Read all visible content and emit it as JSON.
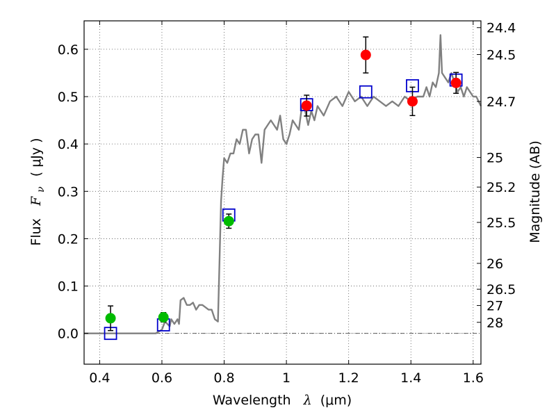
{
  "chart_data": {
    "type": "scatter",
    "title": "",
    "xlabel": "Wavelength",
    "xlabel_math": "λ",
    "xlabel_unit": "(μm)",
    "ylabel": "Flux",
    "ylabel_math": "F",
    "ylabel_math_sub": "ν",
    "ylabel_unit": "( μJy )",
    "y2label": "Magnitude (AB)",
    "xlim": [
      0.35,
      1.625
    ],
    "ylim": [
      -0.065,
      0.66
    ],
    "grid": true,
    "x_ticks": [
      0.4,
      0.6,
      0.8,
      1.0,
      1.2,
      1.4,
      1.6
    ],
    "x_tick_labels": [
      "0.4",
      "0.6",
      "0.8",
      "1",
      "1.2",
      "1.4",
      "1.6"
    ],
    "y_ticks": [
      0.0,
      0.1,
      0.2,
      0.3,
      0.4,
      0.5,
      0.6
    ],
    "y_tick_labels": [
      "0.0",
      "0.1",
      "0.2",
      "0.3",
      "0.4",
      "0.5",
      "0.6"
    ],
    "y2_ticks": [
      {
        "label": "24.4",
        "flux": 0.6457
      },
      {
        "label": "24.5",
        "flux": 0.5888
      },
      {
        "label": "24.7",
        "flux": 0.4898
      },
      {
        "label": "25",
        "flux": 0.3715
      },
      {
        "label": "25.2",
        "flux": 0.309
      },
      {
        "label": "25.5",
        "flux": 0.2344
      },
      {
        "label": "26",
        "flux": 0.1479
      },
      {
        "label": "26.5",
        "flux": 0.0933
      },
      {
        "label": "27",
        "flux": 0.0589
      },
      {
        "label": "28",
        "flux": 0.0234
      }
    ],
    "series": [
      {
        "kind": "line",
        "color": "#808080",
        "x": [
          0.35,
          0.4,
          0.45,
          0.5,
          0.55,
          0.58,
          0.6,
          0.61,
          0.625,
          0.63,
          0.64,
          0.65,
          0.655,
          0.66,
          0.67,
          0.68,
          0.69,
          0.7,
          0.71,
          0.72,
          0.73,
          0.74,
          0.75,
          0.76,
          0.77,
          0.78,
          0.785,
          0.79,
          0.795,
          0.8,
          0.81,
          0.82,
          0.83,
          0.84,
          0.85,
          0.86,
          0.87,
          0.88,
          0.89,
          0.9,
          0.91,
          0.92,
          0.93,
          0.94,
          0.95,
          0.96,
          0.97,
          0.98,
          0.99,
          1.0,
          1.01,
          1.02,
          1.03,
          1.04,
          1.05,
          1.06,
          1.07,
          1.08,
          1.09,
          1.1,
          1.12,
          1.14,
          1.16,
          1.18,
          1.2,
          1.22,
          1.24,
          1.26,
          1.28,
          1.3,
          1.32,
          1.34,
          1.36,
          1.38,
          1.4,
          1.42,
          1.44,
          1.45,
          1.46,
          1.47,
          1.48,
          1.49,
          1.495,
          1.5,
          1.51,
          1.52,
          1.53,
          1.54,
          1.55,
          1.56,
          1.57,
          1.58,
          1.59,
          1.6,
          1.61,
          1.625
        ],
        "y": [
          0.0,
          0.0,
          0.0,
          0.0,
          0.0,
          0.0,
          0.008,
          0.025,
          0.015,
          0.03,
          0.02,
          0.03,
          0.02,
          0.07,
          0.075,
          0.06,
          0.06,
          0.065,
          0.05,
          0.06,
          0.06,
          0.055,
          0.05,
          0.05,
          0.03,
          0.025,
          0.15,
          0.28,
          0.33,
          0.37,
          0.36,
          0.38,
          0.38,
          0.41,
          0.4,
          0.43,
          0.43,
          0.38,
          0.41,
          0.42,
          0.42,
          0.36,
          0.43,
          0.44,
          0.45,
          0.44,
          0.43,
          0.46,
          0.41,
          0.4,
          0.42,
          0.45,
          0.44,
          0.43,
          0.48,
          0.47,
          0.44,
          0.47,
          0.45,
          0.48,
          0.46,
          0.49,
          0.5,
          0.48,
          0.51,
          0.49,
          0.5,
          0.48,
          0.5,
          0.49,
          0.48,
          0.49,
          0.48,
          0.5,
          0.49,
          0.5,
          0.5,
          0.52,
          0.5,
          0.53,
          0.52,
          0.55,
          0.63,
          0.55,
          0.54,
          0.53,
          0.55,
          0.53,
          0.51,
          0.52,
          0.5,
          0.52,
          0.51,
          0.5,
          0.5,
          0.48
        ]
      },
      {
        "kind": "open-square",
        "color": "#0000cc",
        "x": [
          0.435,
          0.605,
          0.815,
          1.065,
          1.255,
          1.405,
          1.545
        ],
        "y": [
          0.0,
          0.018,
          0.25,
          0.483,
          0.51,
          0.523,
          0.535
        ]
      },
      {
        "kind": "filled-circle",
        "color": "#00bb00",
        "x": [
          0.435,
          0.605,
          0.815
        ],
        "y": [
          0.032,
          0.034,
          0.237
        ],
        "err": [
          0.026,
          0.01,
          0.015
        ]
      },
      {
        "kind": "filled-circle",
        "color": "#ff0000",
        "x": [
          1.065,
          1.255,
          1.405,
          1.545
        ],
        "y": [
          0.481,
          0.588,
          0.49,
          0.529
        ],
        "err": [
          0.022,
          0.038,
          0.03,
          0.022
        ]
      }
    ]
  }
}
